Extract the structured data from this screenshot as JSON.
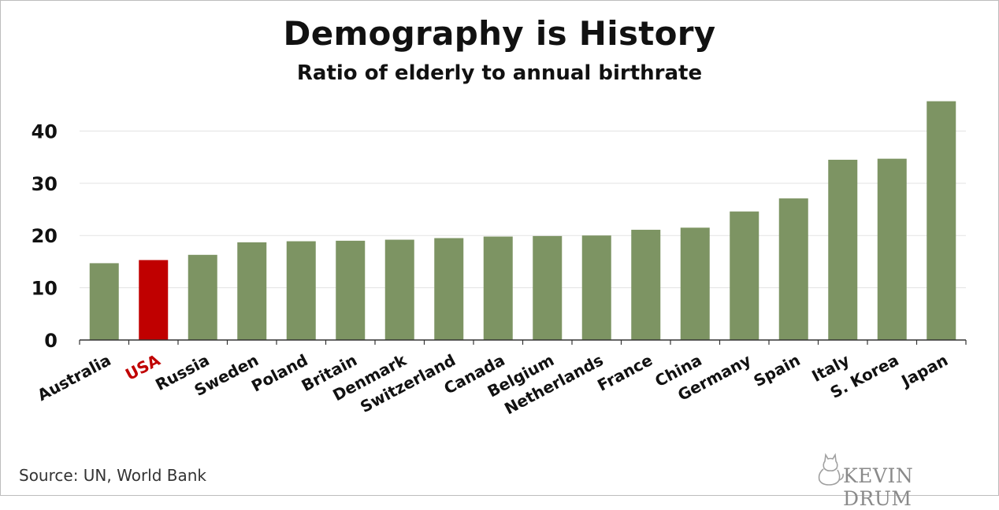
{
  "chart_data": {
    "type": "bar",
    "title": "Demography is History",
    "subtitle": "Ratio of elderly to annual birthrate",
    "categories": [
      "Australia",
      "USA",
      "Russia",
      "Sweden",
      "Poland",
      "Britain",
      "Denmark",
      "Switzerland",
      "Canada",
      "Belgium",
      "Netherlands",
      "France",
      "China",
      "Germany",
      "Spain",
      "Italy",
      "S. Korea",
      "Japan"
    ],
    "values": [
      14.7,
      15.3,
      16.3,
      18.7,
      18.9,
      19.0,
      19.2,
      19.5,
      19.8,
      19.9,
      20.0,
      21.1,
      21.5,
      24.6,
      27.1,
      34.5,
      34.7,
      45.7
    ],
    "highlight": "USA",
    "ylim": [
      0,
      47
    ],
    "yticks": [
      0,
      10,
      20,
      30,
      40
    ],
    "xlabel": "",
    "ylabel": "",
    "grid": true,
    "colors": {
      "bar": "#7d9463",
      "highlight": "#c00000",
      "grid": "#e3e3e3",
      "axis": "#333333",
      "text": "#111111"
    }
  },
  "footer": {
    "source": "Source: UN, World Bank",
    "logo_text": "KEVIN DRUM",
    "logo_icon": "cat-icon"
  }
}
